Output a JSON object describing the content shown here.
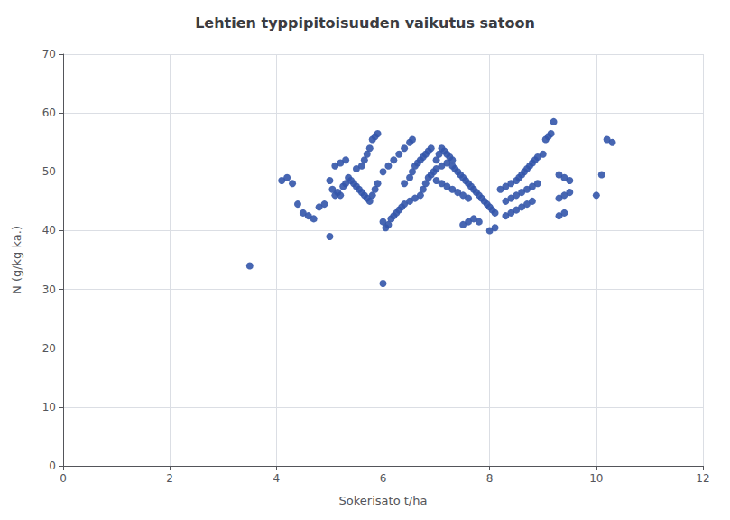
{
  "chart_data": {
    "type": "scatter",
    "title": "Lehtien typpipitoisuuden vaikutus satoon",
    "xlabel": "Sokerisato t/ha",
    "ylabel": "N (g/kg ka.)",
    "xlim": [
      0,
      12
    ],
    "ylim": [
      0,
      70
    ],
    "xticks": [
      0,
      2,
      4,
      6,
      8,
      10,
      12
    ],
    "yticks": [
      0,
      10,
      20,
      30,
      40,
      50,
      60,
      70
    ],
    "grid": true,
    "color": "#3355aa",
    "marker": "circle",
    "x": [
      3.5,
      4.1,
      4.2,
      4.3,
      4.4,
      4.5,
      4.6,
      4.7,
      4.8,
      4.9,
      5.0,
      5.05,
      5.1,
      5.15,
      5.2,
      5.25,
      5.3,
      5.35,
      5.4,
      5.45,
      5.5,
      5.55,
      5.6,
      5.65,
      5.7,
      5.75,
      5.8,
      5.85,
      5.9,
      5.0,
      5.1,
      5.2,
      5.3,
      5.5,
      5.6,
      5.65,
      5.7,
      5.75,
      5.8,
      5.85,
      5.9,
      6.0,
      6.0,
      6.05,
      6.1,
      6.15,
      6.2,
      6.25,
      6.3,
      6.35,
      6.0,
      6.1,
      6.2,
      6.3,
      6.4,
      6.5,
      6.55,
      6.4,
      6.5,
      6.55,
      6.6,
      6.65,
      6.7,
      6.75,
      6.8,
      6.85,
      6.9,
      6.4,
      6.5,
      6.6,
      6.7,
      6.75,
      6.8,
      6.85,
      6.9,
      6.95,
      7.0,
      7.05,
      7.1,
      7.15,
      7.2,
      7.25,
      7.3,
      7.0,
      7.1,
      7.2,
      7.3,
      7.35,
      7.4,
      7.45,
      7.5,
      7.55,
      7.6,
      7.65,
      7.7,
      7.75,
      7.8,
      7.85,
      7.9,
      7.95,
      8.0,
      8.05,
      8.1,
      7.0,
      7.1,
      7.2,
      7.3,
      7.4,
      7.5,
      7.6,
      7.5,
      7.6,
      7.7,
      7.8,
      8.0,
      8.1,
      8.2,
      8.3,
      8.4,
      8.5,
      8.55,
      8.6,
      8.65,
      8.7,
      8.75,
      8.8,
      8.85,
      8.9,
      9.0,
      9.05,
      9.1,
      9.15,
      9.2,
      8.3,
      8.4,
      8.5,
      8.6,
      8.7,
      8.8,
      8.9,
      8.3,
      8.4,
      8.5,
      8.6,
      8.7,
      8.8,
      9.3,
      9.4,
      9.5,
      9.3,
      9.4,
      9.5,
      9.3,
      9.4,
      10.0,
      10.1,
      10.2,
      10.3
    ],
    "values": [
      34,
      48.5,
      49.0,
      48.0,
      44.5,
      43.0,
      42.5,
      42.0,
      44.0,
      44.5,
      48.5,
      47.0,
      46.0,
      46.5,
      46.0,
      47.5,
      48.0,
      49.0,
      48.5,
      48.0,
      47.5,
      47.0,
      46.5,
      46.0,
      45.5,
      45.0,
      46.0,
      47.0,
      48.0,
      39.0,
      51.0,
      51.5,
      52.0,
      50.5,
      51.0,
      52.0,
      53.0,
      54.0,
      55.5,
      56.0,
      56.5,
      31.0,
      41.5,
      40.5,
      41.0,
      42.0,
      42.5,
      43.0,
      43.5,
      44.0,
      50.0,
      51.0,
      52.0,
      53.0,
      54.0,
      55.0,
      55.5,
      48.0,
      49.0,
      50.0,
      51.0,
      51.5,
      52.0,
      52.5,
      53.0,
      53.5,
      54.0,
      44.5,
      45.0,
      45.5,
      46.0,
      47.0,
      48.0,
      49.0,
      49.5,
      50.0,
      52.0,
      53.0,
      54.0,
      53.5,
      53.0,
      52.5,
      52.0,
      50.5,
      51.0,
      51.5,
      51.0,
      50.5,
      50.0,
      49.5,
      49.0,
      48.5,
      48.0,
      47.5,
      47.0,
      46.5,
      46.0,
      45.5,
      45.0,
      44.5,
      44.0,
      43.5,
      43.0,
      48.5,
      48.0,
      47.5,
      47.0,
      46.5,
      46.0,
      45.5,
      41.0,
      41.5,
      42.0,
      41.5,
      40.0,
      40.5,
      47.0,
      47.5,
      48.0,
      48.5,
      49.0,
      49.5,
      50.0,
      50.5,
      51.0,
      51.5,
      52.0,
      52.5,
      53.0,
      55.5,
      56.0,
      56.5,
      58.5,
      45.0,
      45.5,
      46.0,
      46.5,
      47.0,
      47.5,
      48.0,
      42.5,
      43.0,
      43.5,
      44.0,
      44.5,
      45.0,
      49.5,
      49.0,
      48.5,
      45.5,
      46.0,
      46.5,
      42.5,
      43.0,
      46.0,
      49.5,
      55.5,
      55.0
    ]
  }
}
